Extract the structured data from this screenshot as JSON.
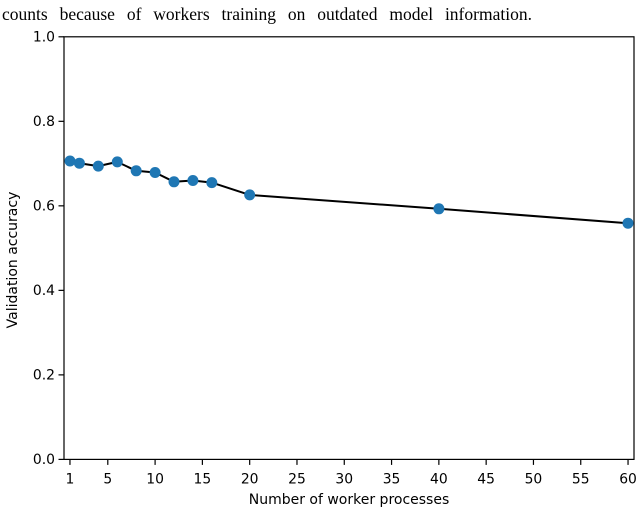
{
  "caption": "counts because of workers training on outdated model information.",
  "chart_data": {
    "type": "line",
    "title": "",
    "xlabel": "Number of worker processes",
    "ylabel": "Validation accuracy",
    "x": [
      1,
      2,
      4,
      6,
      8,
      10,
      12,
      14,
      16,
      20,
      40,
      60
    ],
    "y": [
      0.706,
      0.701,
      0.694,
      0.704,
      0.683,
      0.679,
      0.657,
      0.66,
      0.655,
      0.626,
      0.593,
      0.559
    ],
    "xlim": [
      0.37,
      60.63
    ],
    "ylim": [
      0.0,
      1.0
    ],
    "xticks": [
      1,
      5,
      10,
      15,
      20,
      25,
      30,
      35,
      40,
      45,
      50,
      55,
      60
    ],
    "ytick_labels": [
      "0.0",
      "0.2",
      "0.4",
      "0.6",
      "0.8",
      "1.0"
    ],
    "grid": false,
    "legend_position": "none",
    "line_color": "#000000",
    "marker_color": "#1f77b4",
    "marker": "o"
  }
}
